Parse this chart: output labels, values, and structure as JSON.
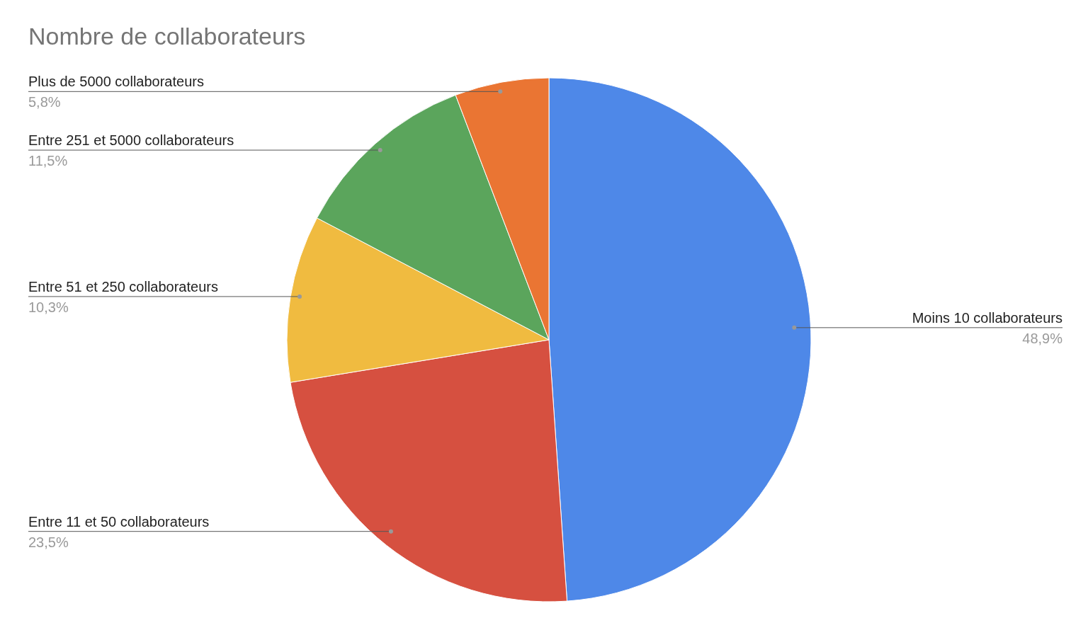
{
  "chart_data": {
    "type": "pie",
    "title": "Nombre de collaborateurs",
    "categories": [
      "Moins 10 collaborateurs",
      "Entre 11 et 50 collaborateurs",
      "Entre 51 et 250 collaborateurs",
      "Entre 251 et 5000 collaborateurs",
      "Plus de 5000 collaborateurs"
    ],
    "values": [
      48.9,
      23.5,
      10.3,
      11.5,
      5.8
    ],
    "value_labels": [
      "48,9%",
      "23,5%",
      "10,3%",
      "11,5%",
      "5,8%"
    ],
    "colors": [
      "#4e88e8",
      "#d65040",
      "#f0bb40",
      "#5ba55c",
      "#ea7533"
    ]
  }
}
